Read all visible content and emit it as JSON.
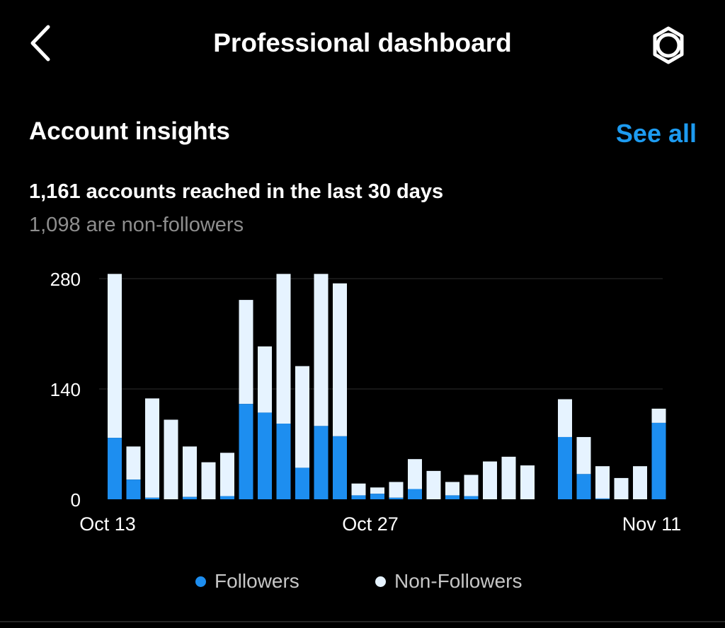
{
  "header": {
    "title": "Professional dashboard",
    "back_icon": "chevron-left-icon",
    "settings_icon": "settings-gear-icon"
  },
  "insights": {
    "title": "Account insights",
    "see_all": "See all",
    "reach_text": "1,161 accounts reached in the last 30 days",
    "nonfollowers_text": "1,098 are non-followers"
  },
  "colors": {
    "followers": "#1d8ef0",
    "non_followers": "#e6f3ff",
    "accent": "#1d9bf0"
  },
  "chart_data": {
    "type": "bar",
    "stacked": true,
    "ylim": [
      0,
      280
    ],
    "y_ticks": [
      280,
      140,
      0
    ],
    "x_tick_labels": [
      "Oct 13",
      "Oct 27",
      "Nov 11"
    ],
    "x_tick_index": [
      0,
      14,
      29
    ],
    "categories": [
      "Oct 13",
      "Oct 14",
      "Oct 15",
      "Oct 16",
      "Oct 17",
      "Oct 18",
      "Oct 19",
      "Oct 20",
      "Oct 21",
      "Oct 22",
      "Oct 23",
      "Oct 24",
      "Oct 25",
      "Oct 26",
      "Oct 27",
      "Oct 28",
      "Oct 29",
      "Oct 30",
      "Oct 31",
      "Nov 1",
      "Nov 2",
      "Nov 3",
      "Nov 4",
      "Nov 5",
      "Nov 6",
      "Nov 7",
      "Nov 8",
      "Nov 9",
      "Nov 10",
      "Nov 11"
    ],
    "series": [
      {
        "name": "Followers",
        "values": [
          78,
          25,
          2,
          0,
          3,
          0,
          4,
          121,
          110,
          96,
          40,
          93,
          80,
          5,
          7,
          2,
          13,
          0,
          5,
          4,
          0,
          0,
          0,
          0,
          79,
          32,
          1,
          0,
          0,
          97
        ]
      },
      {
        "name": "Non-Followers",
        "values": [
          208,
          42,
          126,
          101,
          64,
          47,
          55,
          132,
          84,
          190,
          129,
          193,
          194,
          15,
          8,
          20,
          38,
          36,
          17,
          27,
          48,
          54,
          43,
          0,
          48,
          47,
          41,
          27,
          42,
          18
        ]
      }
    ],
    "legend_position": "bottom",
    "grid": true
  }
}
